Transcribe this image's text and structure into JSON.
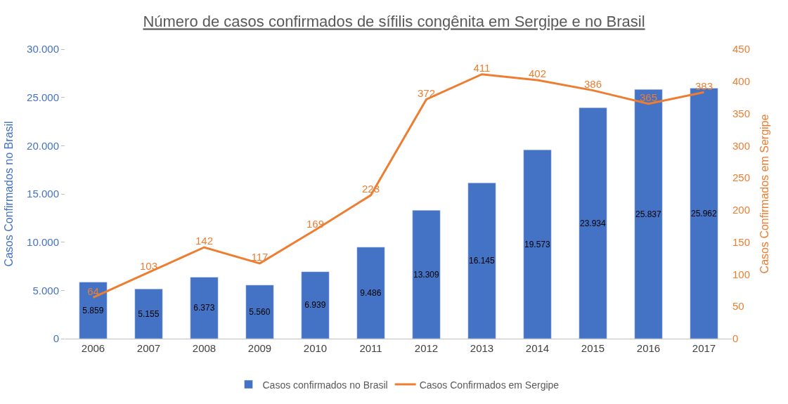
{
  "chart_data": {
    "type": "bar",
    "title": "Número de casos confirmados de sífilis congênita em Sergipe e no Brasil",
    "ylabel": "Casos Confirmados no Brasil",
    "y2label": "Casos Confirmados em Sergipe",
    "categories": [
      "2006",
      "2007",
      "2008",
      "2009",
      "2010",
      "2011",
      "2012",
      "2013",
      "2014",
      "2015",
      "2016",
      "2017"
    ],
    "series": [
      {
        "name": "Casos confirmados no Brasil",
        "color": "#4472c4",
        "values": [
          5859,
          5155,
          6373,
          5560,
          6939,
          9486,
          13309,
          16145,
          19573,
          23934,
          25837,
          25962
        ],
        "value_labels": [
          "5.859",
          "5.155",
          "6.373",
          "5.560",
          "6.939",
          "9.486",
          "13.309",
          "16.145",
          "19.573",
          "23.934",
          "25.837",
          "25.962"
        ]
      },
      {
        "name": "Casos Confirmados em Sergipe",
        "type": "line",
        "axis": "y2",
        "color": "#ed7d31",
        "values": [
          64,
          103,
          142,
          117,
          169,
          223,
          372,
          411,
          402,
          386,
          365,
          383
        ],
        "value_labels": [
          "64",
          "103",
          "142",
          "117",
          "169",
          "223",
          "372",
          "411",
          "402",
          "386",
          "365",
          "383"
        ]
      }
    ],
    "ylim": [
      0,
      30000
    ],
    "yticks": [
      {
        "value": 0,
        "label": "0"
      },
      {
        "value": 5000,
        "label": "5.000"
      },
      {
        "value": 10000,
        "label": "10.000"
      },
      {
        "value": 15000,
        "label": "15.000"
      },
      {
        "value": 20000,
        "label": "20.000"
      },
      {
        "value": 25000,
        "label": "25.000"
      },
      {
        "value": 30000,
        "label": "30.000"
      }
    ],
    "y2lim": [
      0,
      450
    ],
    "y2ticks": [
      0,
      50,
      100,
      150,
      200,
      250,
      300,
      350,
      400,
      450
    ],
    "legend": "bottom",
    "marker": "none",
    "line_style": "solid"
  }
}
